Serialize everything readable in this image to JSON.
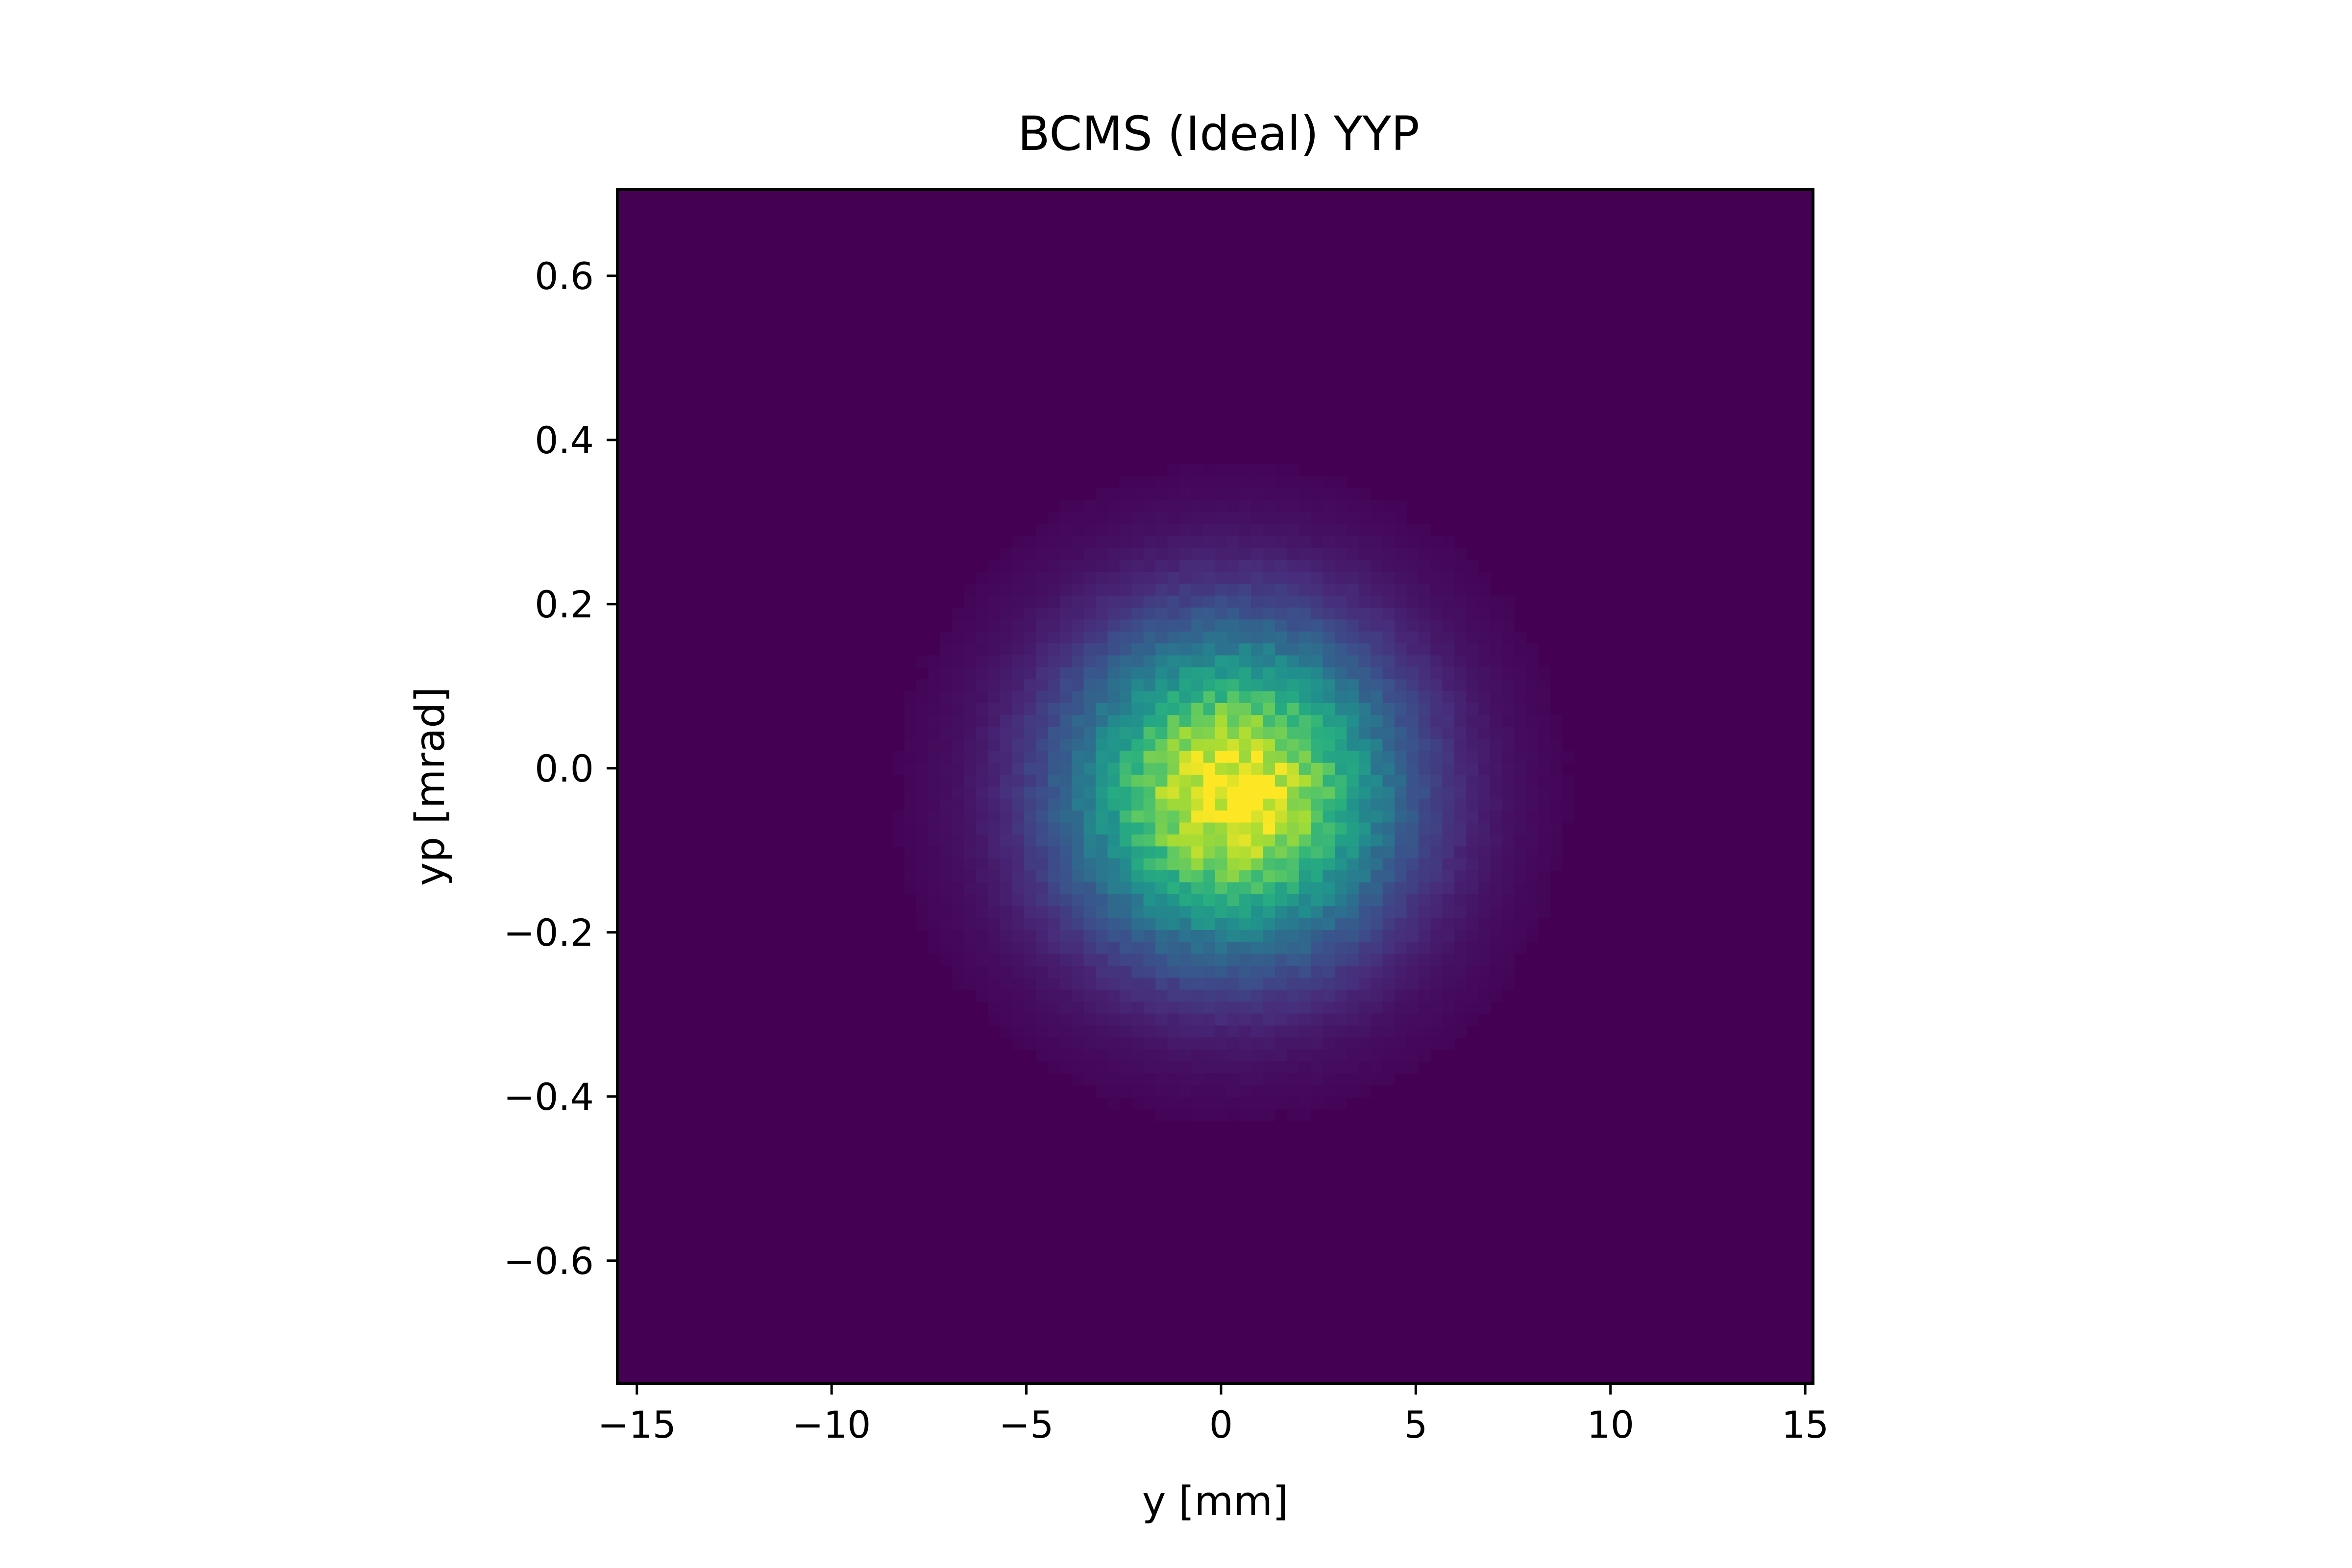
{
  "chart_data": {
    "type": "heatmap",
    "title": "BCMS (Ideal) YYP",
    "xlabel": "y [mm]",
    "ylabel": "yp [mrad]",
    "xlim": [
      -15.5,
      15.2
    ],
    "ylim": [
      -0.75,
      0.705
    ],
    "x_ticks": [
      -15,
      -10,
      -5,
      0,
      5,
      10,
      15
    ],
    "x_tick_labels": [
      "−15",
      "−10",
      "−5",
      "0",
      "5",
      "10",
      "15"
    ],
    "y_ticks": [
      0.6,
      0.4,
      0.2,
      0.0,
      -0.2,
      -0.4,
      -0.6
    ],
    "y_tick_labels": [
      "0.6",
      "0.4",
      "0.2",
      "0.0",
      "−0.2",
      "−0.4",
      "−0.6"
    ],
    "colormap": "viridis",
    "distribution": {
      "shape": "2D Gaussian",
      "center_x": 0.3,
      "center_y": -0.03,
      "sigma_x": 2.9,
      "sigma_y": 0.135
    },
    "grid": false,
    "legend": "none"
  }
}
